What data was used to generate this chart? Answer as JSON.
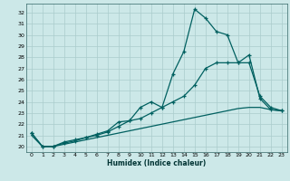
{
  "xlabel": "Humidex (Indice chaleur)",
  "bg_color": "#cce8e8",
  "line_color": "#006060",
  "grid_color": "#aacccc",
  "xlim": [
    -0.5,
    23.5
  ],
  "ylim": [
    19.5,
    32.8
  ],
  "yticks": [
    20,
    21,
    22,
    23,
    24,
    25,
    26,
    27,
    28,
    29,
    30,
    31,
    32
  ],
  "xticks": [
    0,
    1,
    2,
    3,
    4,
    5,
    6,
    7,
    8,
    9,
    10,
    11,
    12,
    13,
    14,
    15,
    16,
    17,
    18,
    19,
    20,
    21,
    22,
    23
  ],
  "line1_x": [
    0,
    1,
    2,
    3,
    4,
    5,
    6,
    7,
    8,
    9,
    10,
    11,
    12,
    13,
    14,
    15,
    16,
    17,
    18,
    19,
    20,
    21,
    22,
    23
  ],
  "line1_y": [
    21.2,
    20.0,
    20.0,
    20.4,
    20.6,
    20.8,
    21.0,
    21.3,
    21.8,
    22.3,
    23.5,
    24.0,
    23.5,
    26.5,
    28.5,
    32.3,
    31.5,
    30.3,
    30.0,
    27.5,
    28.2,
    24.3,
    23.3,
    23.2
  ],
  "line2_x": [
    0,
    1,
    2,
    3,
    4,
    5,
    6,
    7,
    8,
    9,
    10,
    11,
    12,
    13,
    14,
    15,
    16,
    17,
    18,
    19,
    20,
    21,
    22,
    23
  ],
  "line2_y": [
    21.2,
    20.0,
    20.0,
    20.3,
    20.5,
    20.8,
    21.1,
    21.4,
    22.2,
    22.3,
    22.5,
    23.0,
    23.5,
    24.0,
    24.5,
    25.5,
    27.0,
    27.5,
    27.5,
    27.5,
    27.5,
    24.5,
    23.5,
    23.2
  ],
  "line3_x": [
    0,
    1,
    2,
    3,
    4,
    5,
    6,
    7,
    8,
    9,
    10,
    11,
    12,
    13,
    14,
    15,
    16,
    17,
    18,
    19,
    20,
    21,
    22,
    23
  ],
  "line3_y": [
    21.0,
    20.0,
    20.0,
    20.2,
    20.4,
    20.6,
    20.8,
    21.0,
    21.2,
    21.4,
    21.6,
    21.8,
    22.0,
    22.2,
    22.4,
    22.6,
    22.8,
    23.0,
    23.2,
    23.4,
    23.5,
    23.5,
    23.3,
    23.2
  ]
}
